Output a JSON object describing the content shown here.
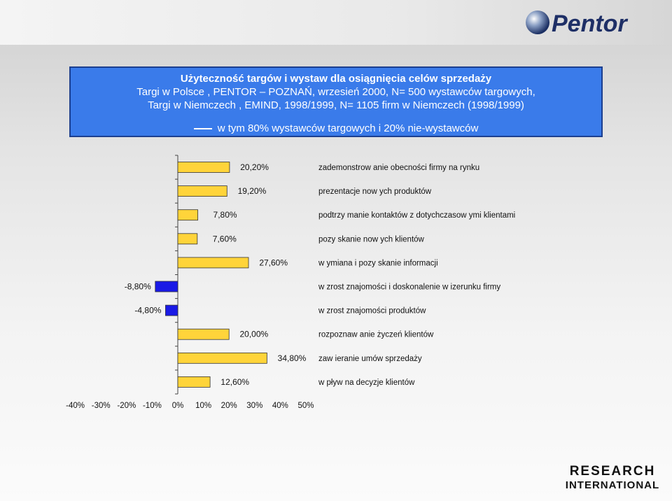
{
  "header": {
    "title": "Użyteczność targów i wystaw  dla osiągnięcia celów sprzedaży",
    "line2": "Targi w Polsce , PENTOR – POZNAŃ, wrzesień 2000,  N=  500 wystawców targowych,",
    "line3": "Targi w Niemczech , EMIND, 1998/1999, N= 1105 firm w  Niemczech (1998/1999)",
    "subline": "w tym 80% wystawców targowych i 20% nie-wystawców"
  },
  "logos": {
    "pentor": "Pentor",
    "research_line1": "RESEARCH",
    "research_line2": "INTERNATIONAL"
  },
  "colors": {
    "positive_bar": "#ffd43a",
    "negative_bar": "#1a1ae6",
    "header_bg": "#3a7bea"
  },
  "chart_data": {
    "type": "bar",
    "orientation": "horizontal",
    "categories": [
      "zademonstrow anie obecności firmy na rynku",
      "prezentacje now ych produktów",
      "podtrzy manie kontaktów z dotychczasow ymi klientami",
      "pozy skanie now ych klientów",
      "w ymiana i pozy skanie informacji",
      "w zrost znajomości i doskonalenie w izerunku firmy",
      "w zrost znajomości produktów",
      "rozpoznaw anie życzeń klientów",
      "zaw ieranie umów  sprzedaży",
      "w pływ  na decyzje klientów"
    ],
    "values": [
      20.2,
      19.2,
      7.8,
      7.6,
      27.6,
      -8.8,
      -4.8,
      20.0,
      34.8,
      12.6
    ],
    "value_labels": [
      "20,20%",
      "19,20%",
      "7,80%",
      "7,60%",
      "27,60%",
      "-8,80%",
      "-4,80%",
      "20,00%",
      "34,80%",
      "12,60%"
    ],
    "xlim": [
      -40,
      50
    ],
    "x_ticks": [
      -40,
      -30,
      -20,
      -10,
      0,
      10,
      20,
      30,
      40,
      50
    ],
    "x_tick_labels": [
      "-40%",
      "-30%",
      "-20%",
      "-10%",
      "0%",
      "10%",
      "20%",
      "30%",
      "40%",
      "50%"
    ],
    "grid": false,
    "legend": "none"
  }
}
